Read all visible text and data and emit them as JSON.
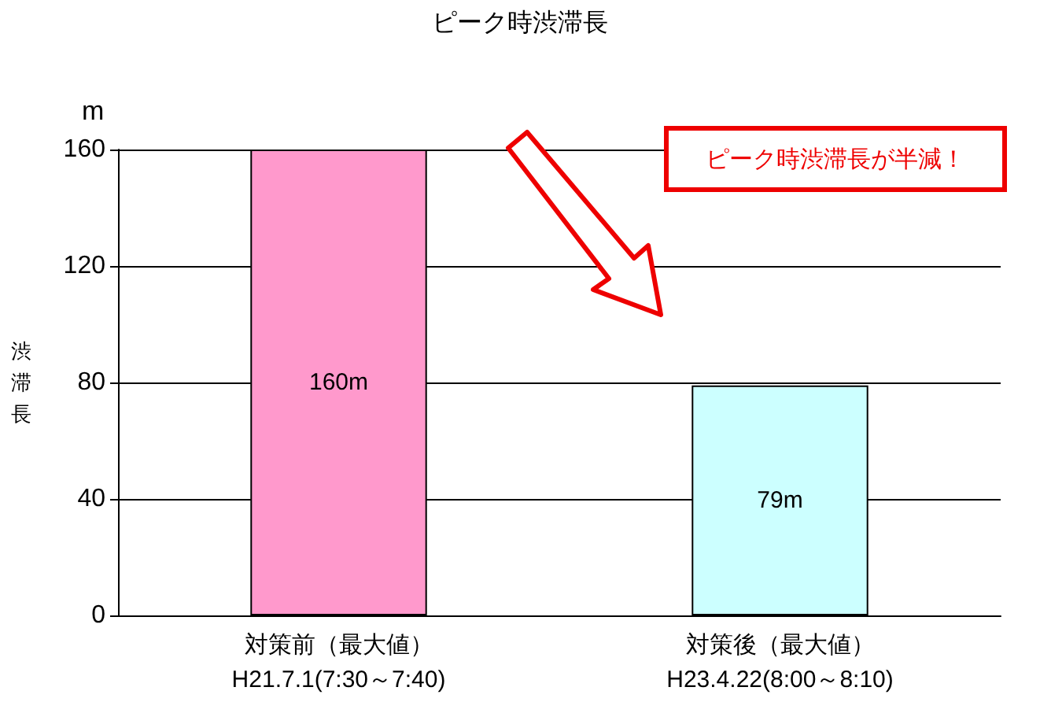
{
  "chart_data": {
    "type": "bar",
    "title": "ピーク時渋滞長",
    "ylabel": "渋滞長",
    "categories": [
      "対策前（最大値）\nH21.7.1(7:30～7:40)",
      "対策後（最大値）\nH23.4.22(8:00～8:10)"
    ],
    "values": [
      160,
      79
    ],
    "colors": [
      "#ff99cc",
      "#ccffff"
    ],
    "value_labels": [
      "160m",
      "79m"
    ],
    "ylim": [
      0,
      160
    ],
    "yticks": [
      0,
      40,
      80,
      120,
      160
    ],
    "grid": "y",
    "annotations": [
      "m",
      "ピーク時渋滞長が半減！"
    ]
  }
}
